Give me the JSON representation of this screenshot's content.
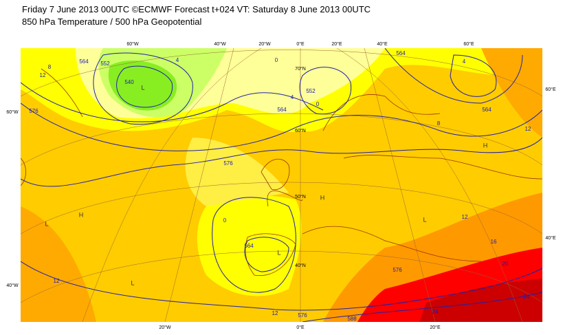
{
  "header": {
    "line1": "Friday 7 June 2013 00UTC ©ECMWF Forecast t+024 VT: Saturday 8 June 2013 00UTC",
    "line2": "850 hPa Temperature / 500 hPa Geopotential"
  },
  "map": {
    "lon_labels_top": [
      "60°W",
      "40°W",
      "20°W",
      "0°E",
      "20°E",
      "40°E",
      "60°E"
    ],
    "lon_labels_bottom": [
      "20°W",
      "0°E",
      "20°E"
    ],
    "edge_labels_left": [
      "60°W",
      "40°W"
    ],
    "edge_labels_right": [
      "60°E",
      "40°E"
    ],
    "lat_labels": [
      "70°N",
      "60°N",
      "50°N",
      "40°N"
    ],
    "pressure_centres": [
      "L",
      "L",
      "H",
      "L",
      "L",
      "H",
      "L",
      "H"
    ],
    "contour_labels": [
      564,
      552,
      540,
      12,
      8,
      4,
      0,
      552,
      564,
      0,
      4,
      564,
      4,
      8,
      564,
      12,
      576,
      0,
      564,
      12,
      16,
      576,
      20,
      24,
      24,
      12,
      576,
      588,
      12,
      576
    ]
  }
}
